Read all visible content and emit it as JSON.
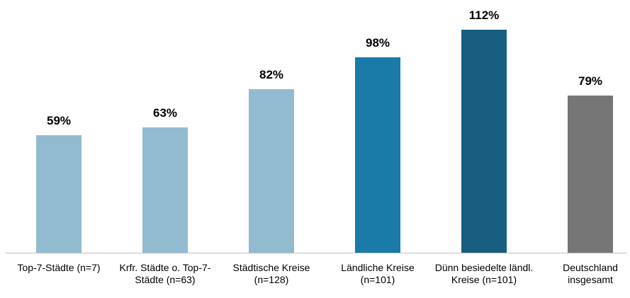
{
  "chart_data": {
    "type": "bar",
    "categories": [
      "Top-7-Städte (n=7)",
      "Krfr. Städte o. Top-7-Städte (n=63)",
      "Städtische Kreise (n=128)",
      "Ländliche Kreise (n=101)",
      "Dünn besiedelte ländl. Kreise (n=101)",
      "Deutschland insgesamt"
    ],
    "values": [
      59,
      63,
      82,
      98,
      112,
      79
    ],
    "value_labels": [
      "59%",
      "63%",
      "82%",
      "98%",
      "112%",
      "79%"
    ],
    "colors": [
      "#93bbd0",
      "#93bbd0",
      "#93bbd0",
      "#1a7aa8",
      "#175e80",
      "#767676"
    ]
  }
}
